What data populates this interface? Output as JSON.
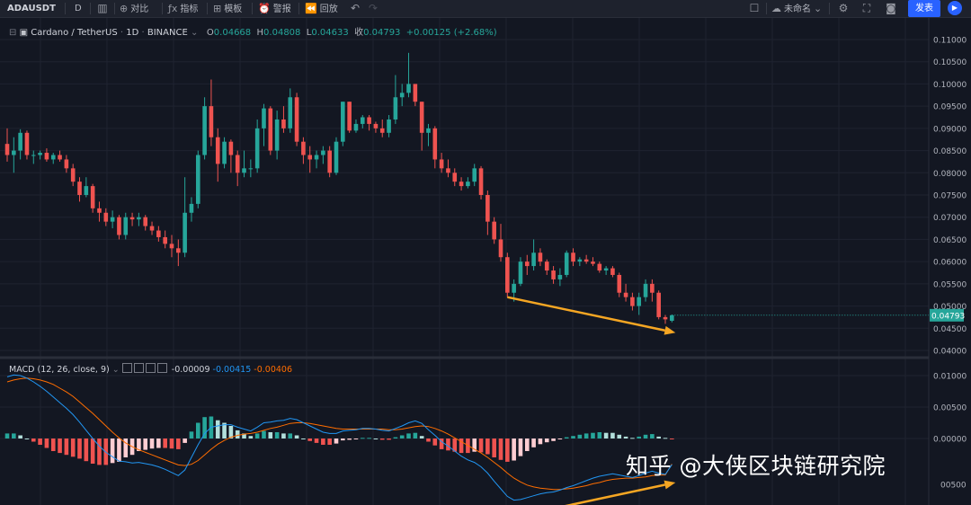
{
  "toolbar": {
    "symbol": "ADAUSDT",
    "interval": "D",
    "compare": "对比",
    "indicators": "指标",
    "templates": "模板",
    "alerts": "警报",
    "replay": "回放",
    "layout_name": "未命名",
    "publish": "发表"
  },
  "legend": {
    "title": "Cardano / TetherUS",
    "interval": "1D",
    "exchange": "BINANCE",
    "o_label": "O",
    "o": "0.04668",
    "h_label": "H",
    "h": "0.04808",
    "l_label": "L",
    "l": "0.04633",
    "c_label": "收",
    "c": "0.04793",
    "change": "+0.00125 (+2.68%)"
  },
  "macd_legend": {
    "name": "MACD (12, 26, close, 9)",
    "v1": "-0.00009",
    "v2": "-0.00415",
    "v3": "-0.00406"
  },
  "watermark": "知乎 @大侠区块链研究院",
  "colors": {
    "up": "#26a69a",
    "down": "#ef5350",
    "macd_line": "#2196f3",
    "signal_line": "#ff6d00",
    "arrow": "#f5a623",
    "price_tag": "#26a69a"
  },
  "chart_data": [
    {
      "type": "candlestick",
      "title": "Cardano / TetherUS",
      "ylim": [
        0.0385,
        0.1125
      ],
      "y_ticks": [
        "0.04000",
        "0.04500",
        "0.05000",
        "0.05500",
        "0.06000",
        "0.06500",
        "0.07000",
        "0.07500",
        "0.08000",
        "0.08500",
        "0.09000",
        "0.09500",
        "0.10000",
        "0.10500",
        "0.11000"
      ],
      "last_price": "0.04793",
      "series": [
        {
          "values": [
            [
              0.0865,
              0.09,
              0.0825,
              0.084
            ],
            [
              0.084,
              0.088,
              0.08,
              0.085
            ],
            [
              0.085,
              0.0898,
              0.083,
              0.089
            ],
            [
              0.089,
              0.0895,
              0.083,
              0.084
            ],
            [
              0.084,
              0.085,
              0.082,
              0.084
            ],
            [
              0.084,
              0.085,
              0.083,
              0.0845
            ],
            [
              0.0845,
              0.0855,
              0.0825,
              0.083
            ],
            [
              0.083,
              0.0845,
              0.082,
              0.084
            ],
            [
              0.084,
              0.085,
              0.0825,
              0.083
            ],
            [
              0.083,
              0.084,
              0.08,
              0.081
            ],
            [
              0.081,
              0.082,
              0.077,
              0.078
            ],
            [
              0.078,
              0.079,
              0.0735,
              0.075
            ],
            [
              0.075,
              0.079,
              0.0745,
              0.077
            ],
            [
              0.077,
              0.0775,
              0.071,
              0.072
            ],
            [
              0.072,
              0.0735,
              0.069,
              0.071
            ],
            [
              0.071,
              0.072,
              0.068,
              0.069
            ],
            [
              0.069,
              0.0715,
              0.0675,
              0.07
            ],
            [
              0.07,
              0.0705,
              0.065,
              0.066
            ],
            [
              0.066,
              0.071,
              0.065,
              0.07
            ],
            [
              0.07,
              0.071,
              0.068,
              0.0695
            ],
            [
              0.0695,
              0.071,
              0.068,
              0.07
            ],
            [
              0.07,
              0.0705,
              0.067,
              0.068
            ],
            [
              0.068,
              0.069,
              0.066,
              0.067
            ],
            [
              0.067,
              0.068,
              0.0645,
              0.0655
            ],
            [
              0.0655,
              0.067,
              0.063,
              0.064
            ],
            [
              0.064,
              0.066,
              0.061,
              0.063
            ],
            [
              0.063,
              0.065,
              0.059,
              0.062
            ],
            [
              0.062,
              0.079,
              0.061,
              0.071
            ],
            [
              0.071,
              0.0745,
              0.069,
              0.073
            ],
            [
              0.073,
              0.085,
              0.072,
              0.084
            ],
            [
              0.084,
              0.097,
              0.083,
              0.095
            ],
            [
              0.095,
              0.101,
              0.086,
              0.088
            ],
            [
              0.088,
              0.09,
              0.078,
              0.082
            ],
            [
              0.082,
              0.088,
              0.081,
              0.087
            ],
            [
              0.087,
              0.0875,
              0.08,
              0.084
            ],
            [
              0.084,
              0.085,
              0.077,
              0.08
            ],
            [
              0.08,
              0.085,
              0.079,
              0.081
            ],
            [
              0.081,
              0.083,
              0.079,
              0.081
            ],
            [
              0.081,
              0.092,
              0.08,
              0.09
            ],
            [
              0.09,
              0.0955,
              0.086,
              0.0945
            ],
            [
              0.0945,
              0.095,
              0.084,
              0.085
            ],
            [
              0.085,
              0.094,
              0.083,
              0.092
            ],
            [
              0.092,
              0.095,
              0.089,
              0.09
            ],
            [
              0.09,
              0.099,
              0.089,
              0.097
            ],
            [
              0.097,
              0.098,
              0.086,
              0.087
            ],
            [
              0.087,
              0.088,
              0.082,
              0.084
            ],
            [
              0.084,
              0.086,
              0.08,
              0.083
            ],
            [
              0.083,
              0.085,
              0.081,
              0.084
            ],
            [
              0.084,
              0.086,
              0.082,
              0.085
            ],
            [
              0.085,
              0.086,
              0.079,
              0.08
            ],
            [
              0.08,
              0.088,
              0.0795,
              0.087
            ],
            [
              0.087,
              0.096,
              0.086,
              0.096
            ],
            [
              0.096,
              0.096,
              0.089,
              0.0895
            ],
            [
              0.0895,
              0.092,
              0.089,
              0.091
            ],
            [
              0.091,
              0.093,
              0.09,
              0.0925
            ],
            [
              0.0925,
              0.093,
              0.0895,
              0.091
            ],
            [
              0.091,
              0.0915,
              0.089,
              0.09
            ],
            [
              0.09,
              0.092,
              0.088,
              0.089
            ],
            [
              0.089,
              0.093,
              0.088,
              0.092
            ],
            [
              0.092,
              0.102,
              0.091,
              0.097
            ],
            [
              0.097,
              0.1,
              0.095,
              0.098
            ],
            [
              0.098,
              0.107,
              0.097,
              0.1
            ],
            [
              0.1,
              0.1,
              0.095,
              0.096
            ],
            [
              0.096,
              0.096,
              0.085,
              0.089
            ],
            [
              0.089,
              0.091,
              0.086,
              0.09
            ],
            [
              0.09,
              0.0905,
              0.081,
              0.083
            ],
            [
              0.083,
              0.0845,
              0.08,
              0.081
            ],
            [
              0.081,
              0.083,
              0.079,
              0.08
            ],
            [
              0.08,
              0.081,
              0.077,
              0.078
            ],
            [
              0.078,
              0.079,
              0.076,
              0.077
            ],
            [
              0.077,
              0.079,
              0.0765,
              0.078
            ],
            [
              0.078,
              0.082,
              0.077,
              0.081
            ],
            [
              0.081,
              0.0815,
              0.074,
              0.075
            ],
            [
              0.075,
              0.076,
              0.066,
              0.069
            ],
            [
              0.069,
              0.07,
              0.064,
              0.065
            ],
            [
              0.065,
              0.0685,
              0.06,
              0.061
            ],
            [
              0.061,
              0.062,
              0.052,
              0.053
            ],
            [
              0.053,
              0.056,
              0.051,
              0.055
            ],
            [
              0.055,
              0.061,
              0.0545,
              0.06
            ],
            [
              0.06,
              0.0615,
              0.057,
              0.059
            ],
            [
              0.059,
              0.065,
              0.058,
              0.062
            ],
            [
              0.062,
              0.063,
              0.059,
              0.06
            ],
            [
              0.06,
              0.0605,
              0.057,
              0.058
            ],
            [
              0.058,
              0.059,
              0.055,
              0.056
            ],
            [
              0.056,
              0.0585,
              0.0545,
              0.057
            ],
            [
              0.057,
              0.0625,
              0.0565,
              0.062
            ],
            [
              0.062,
              0.063,
              0.059,
              0.06
            ],
            [
              0.06,
              0.061,
              0.059,
              0.0605
            ],
            [
              0.0605,
              0.0615,
              0.0595,
              0.06
            ],
            [
              0.06,
              0.061,
              0.059,
              0.0595
            ],
            [
              0.0595,
              0.06,
              0.0575,
              0.058
            ],
            [
              0.058,
              0.059,
              0.057,
              0.0585
            ],
            [
              0.0585,
              0.059,
              0.0565,
              0.057
            ],
            [
              0.057,
              0.0575,
              0.052,
              0.053
            ],
            [
              0.053,
              0.055,
              0.051,
              0.052
            ],
            [
              0.052,
              0.053,
              0.049,
              0.05
            ],
            [
              0.05,
              0.053,
              0.048,
              0.052
            ],
            [
              0.052,
              0.056,
              0.051,
              0.055
            ],
            [
              0.055,
              0.056,
              0.051,
              0.053
            ],
            [
              0.053,
              0.0535,
              0.047,
              0.0475
            ],
            [
              0.0475,
              0.048,
              0.046,
              0.047
            ],
            [
              0.04668,
              0.04808,
              0.04633,
              0.04793
            ]
          ]
        }
      ],
      "annotations": [
        {
          "type": "arrow",
          "from": [
            76,
            0.052
          ],
          "to": [
            101,
            0.044
          ]
        }
      ]
    },
    {
      "type": "bar",
      "title": "MACD (12, 26, close, 9)",
      "ylim": [
        -0.0135,
        0.0125
      ],
      "y_ticks": [
        "0.01000",
        "0.00500",
        "0.00000"
      ],
      "series": [
        {
          "name": "MACD",
          "values": [
            0.0098,
            0.0101,
            0.01,
            0.0096,
            0.009,
            0.0083,
            0.0075,
            0.0066,
            0.0057,
            0.0048,
            0.0038,
            0.0026,
            0.0013,
            0.0,
            -0.0012,
            -0.0022,
            -0.0029,
            -0.0036,
            -0.0037,
            -0.0039,
            -0.0038,
            -0.004,
            -0.0042,
            -0.0045,
            -0.0049,
            -0.0054,
            -0.0059,
            -0.005,
            -0.003,
            -0.001,
            0.0008,
            0.0018,
            0.002,
            0.0022,
            0.0022,
            0.0018,
            0.0015,
            0.0012,
            0.0018,
            0.0025,
            0.0026,
            0.0028,
            0.0029,
            0.0032,
            0.003,
            0.0025,
            0.002,
            0.0015,
            0.001,
            0.0008,
            0.0008,
            0.0012,
            0.0013,
            0.0014,
            0.0016,
            0.0016,
            0.0015,
            0.0013,
            0.0012,
            0.0016,
            0.002,
            0.0025,
            0.0028,
            0.0024,
            0.0014,
            0.0005,
            -0.0005,
            -0.0012,
            -0.002,
            -0.0028,
            -0.0034,
            -0.0038,
            -0.0045,
            -0.0055,
            -0.0068,
            -0.008,
            -0.0092,
            -0.0098,
            -0.0097,
            -0.0094,
            -0.0091,
            -0.0088,
            -0.0086,
            -0.0085,
            -0.0082,
            -0.0078,
            -0.0075,
            -0.0071,
            -0.0067,
            -0.0063,
            -0.006,
            -0.0058,
            -0.0056,
            -0.0058,
            -0.006,
            -0.0062,
            -0.0059,
            -0.0055,
            -0.0052,
            -0.0055,
            -0.0057,
            -0.00415
          ]
        },
        {
          "name": "Signal",
          "values": [
            0.009,
            0.0093,
            0.0095,
            0.0096,
            0.0095,
            0.0093,
            0.009,
            0.0086,
            0.008,
            0.0074,
            0.0067,
            0.0058,
            0.0049,
            0.004,
            0.003,
            0.002,
            0.001,
            0.0001,
            -0.0007,
            -0.0013,
            -0.0018,
            -0.0022,
            -0.0026,
            -0.003,
            -0.0034,
            -0.0038,
            -0.0042,
            -0.0043,
            -0.0041,
            -0.0035,
            -0.0026,
            -0.0017,
            -0.0009,
            -0.0003,
            0.0002,
            0.0005,
            0.0007,
            0.0008,
            0.001,
            0.0013,
            0.0016,
            0.0018,
            0.0021,
            0.0024,
            0.0025,
            0.0025,
            0.0024,
            0.0022,
            0.002,
            0.0018,
            0.0016,
            0.0015,
            0.0015,
            0.0015,
            0.0015,
            0.0015,
            0.0015,
            0.0015,
            0.0014,
            0.0014,
            0.0015,
            0.0017,
            0.0019,
            0.002,
            0.0019,
            0.0016,
            0.0012,
            0.0007,
            0.0001,
            -0.0005,
            -0.0011,
            -0.0017,
            -0.0023,
            -0.003,
            -0.0038,
            -0.0046,
            -0.0055,
            -0.0063,
            -0.0069,
            -0.0074,
            -0.0077,
            -0.0079,
            -0.008,
            -0.0081,
            -0.0081,
            -0.008,
            -0.0079,
            -0.0077,
            -0.0075,
            -0.0072,
            -0.007,
            -0.0067,
            -0.0065,
            -0.0064,
            -0.0063,
            -0.0063,
            -0.0062,
            -0.0061,
            -0.0059,
            -0.0058,
            -0.0058,
            -0.00406
          ]
        }
      ],
      "annotations": [
        {
          "type": "arrow",
          "from": [
            76,
            -0.0127
          ],
          "to": [
            101,
            -0.007
          ]
        }
      ]
    }
  ]
}
